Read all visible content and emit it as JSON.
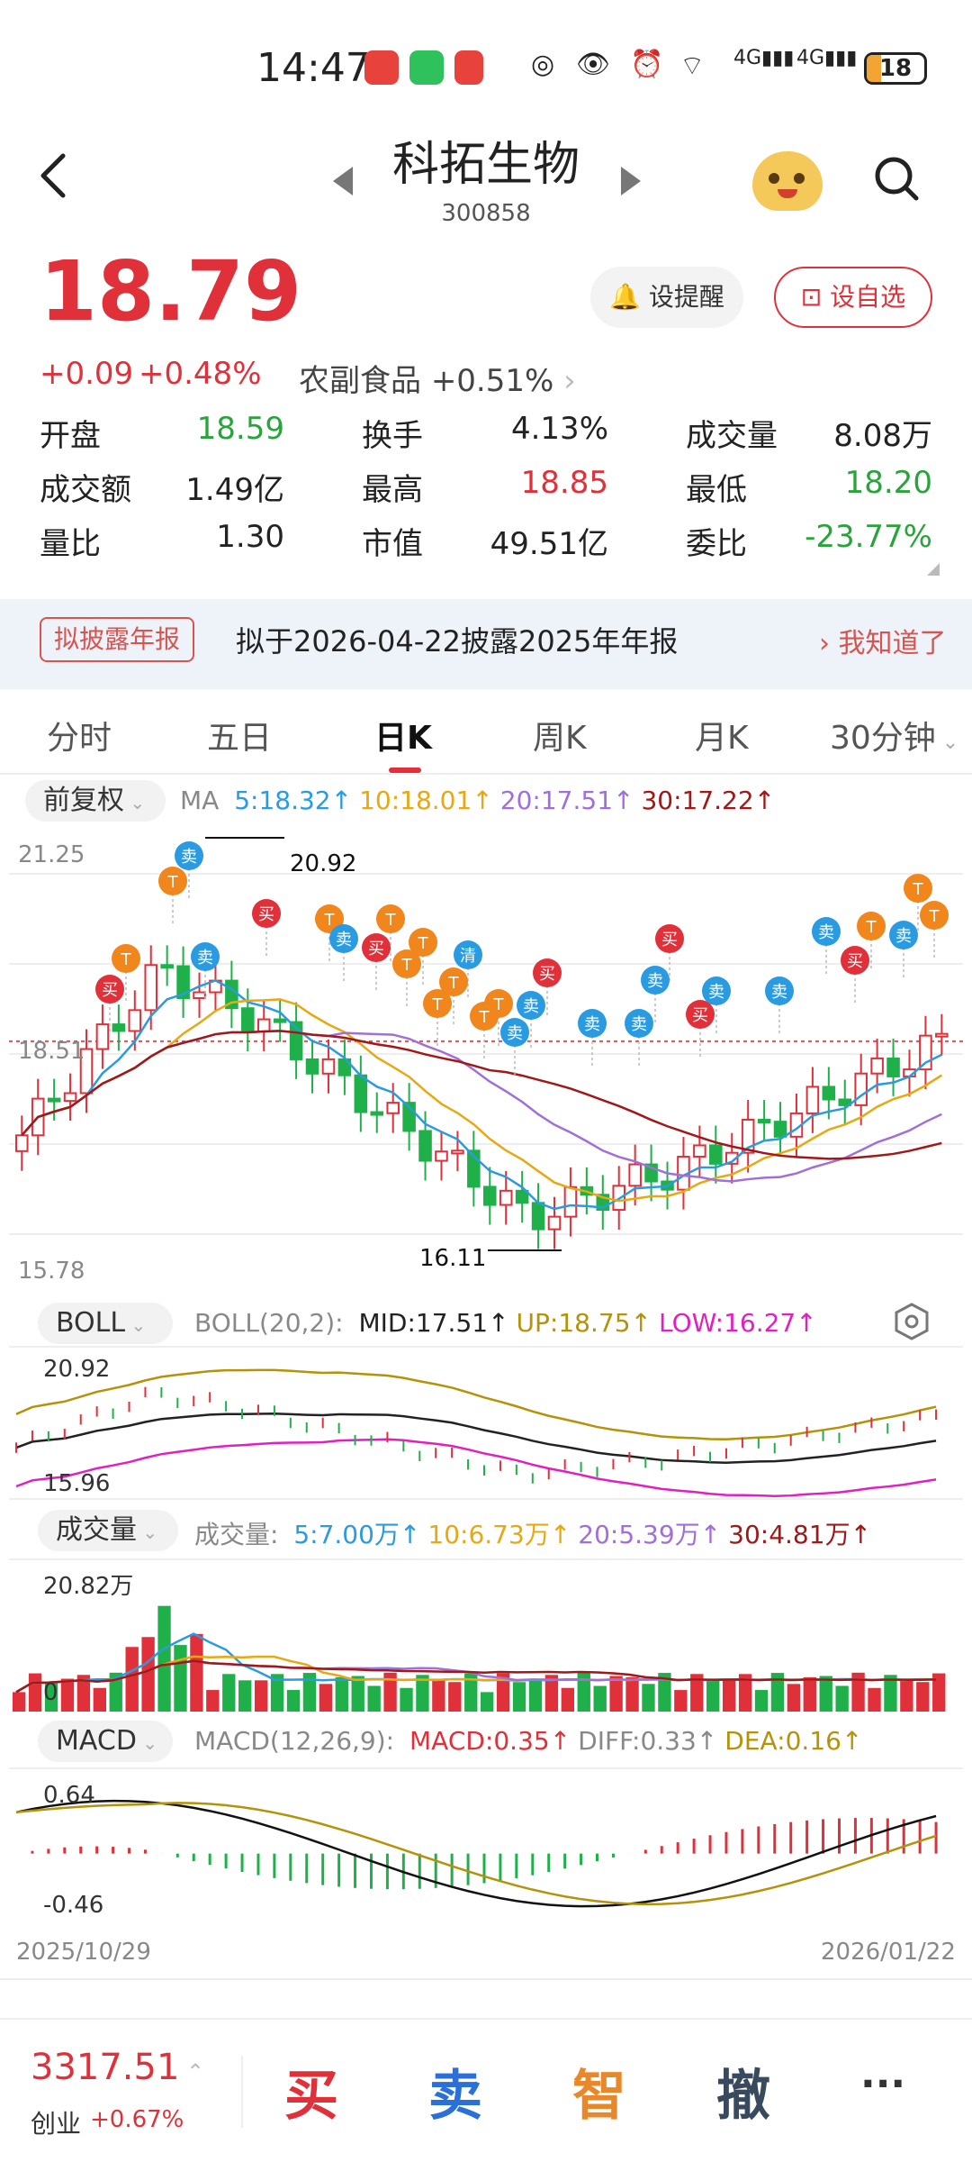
{
  "status_bar": {
    "time": "14:47",
    "battery": "18",
    "net1": "4G",
    "net2": "4G"
  },
  "header": {
    "stock_name": "科拓生物",
    "stock_code": "300858"
  },
  "price": {
    "last": "18.79",
    "change": "+0.09",
    "change_pct": "+0.48%",
    "sector": "农副食品",
    "sector_pct": "+0.51%",
    "alert_label": "设提醒",
    "watch_label": "设自选"
  },
  "stats": [
    {
      "k": "开盘",
      "v": "18.59",
      "color": "#2aa33c"
    },
    {
      "k": "换手",
      "v": "4.13%",
      "color": "#222"
    },
    {
      "k": "成交量",
      "v": "8.08万",
      "color": "#222"
    },
    {
      "k": "成交额",
      "v": "1.49亿",
      "color": "#222"
    },
    {
      "k": "最高",
      "v": "18.85",
      "color": "#e0303a"
    },
    {
      "k": "最低",
      "v": "18.20",
      "color": "#2aa33c"
    },
    {
      "k": "量比",
      "v": "1.30",
      "color": "#222"
    },
    {
      "k": "市值",
      "v": "49.51亿",
      "color": "#222"
    },
    {
      "k": "委比",
      "v": "-23.77%",
      "color": "#2aa33c"
    }
  ],
  "notice": {
    "tag": "拟披露年报",
    "text": "拟于2026-04-22披露2025年年报",
    "ok": "我知道了"
  },
  "tabs": [
    "分时",
    "五日",
    "日K",
    "周K",
    "月K",
    "30分钟"
  ],
  "ma_row": {
    "mode": "前复权",
    "label": "MA",
    "items": [
      {
        "t": "5:18.32↑",
        "color": "#2a9be0"
      },
      {
        "t": "10:18.01↑",
        "color": "#e8a812"
      },
      {
        "t": "20:17.51↑",
        "color": "#a070d8"
      },
      {
        "t": "30:17.22↑",
        "color": "#a01818"
      }
    ]
  },
  "kline": {
    "y_top": "21.25",
    "y_mid": "18.51",
    "y_bot": "15.78",
    "high_mark": "20.92",
    "low_mark": "16.11"
  },
  "boll_row": {
    "name": "BOLL",
    "params": "BOLL(20,2):",
    "items": [
      {
        "t": "MID:17.51↑",
        "color": "#222"
      },
      {
        "t": "UP:18.75↑",
        "color": "#b5920a"
      },
      {
        "t": "LOW:16.27↑",
        "color": "#e020c0"
      }
    ],
    "y_top": "20.92",
    "y_bot": "15.96"
  },
  "vol_row": {
    "name": "成交量",
    "params": "成交量:",
    "items": [
      {
        "t": "5:7.00万↑",
        "color": "#2a9be0"
      },
      {
        "t": "10:6.73万↑",
        "color": "#e8a812"
      },
      {
        "t": "20:5.39万↑",
        "color": "#a070d8"
      },
      {
        "t": "30:4.81万↑",
        "color": "#a01818"
      }
    ],
    "y_top": "20.82万",
    "y_bot": "0"
  },
  "macd_row": {
    "name": "MACD",
    "params": "MACD(12,26,9):",
    "items": [
      {
        "t": "MACD:0.35↑",
        "color": "#e0303a"
      },
      {
        "t": "DIFF:0.33↑",
        "color": "#888"
      },
      {
        "t": "DEA:0.16↑",
        "color": "#b5920a"
      }
    ],
    "y_top": "0.64",
    "y_bot": "-0.46"
  },
  "dates": {
    "start": "2025/10/29",
    "end": "2026/01/22"
  },
  "bottom": {
    "index_value": "3317.51",
    "index_name": "创业",
    "index_chg": "+0.67%",
    "buy": "买",
    "sell": "卖",
    "smart": "智",
    "cancel": "撤",
    "more": "···"
  },
  "trade_marks": {
    "buy": "买",
    "sell": "卖",
    "t": "T",
    "clear": "清"
  },
  "colors": {
    "up": "#e0303a",
    "down": "#1fb04a",
    "ma5": "#2a9be0",
    "ma10": "#e8a812",
    "ma20": "#a070d8",
    "ma30": "#a01818"
  }
}
